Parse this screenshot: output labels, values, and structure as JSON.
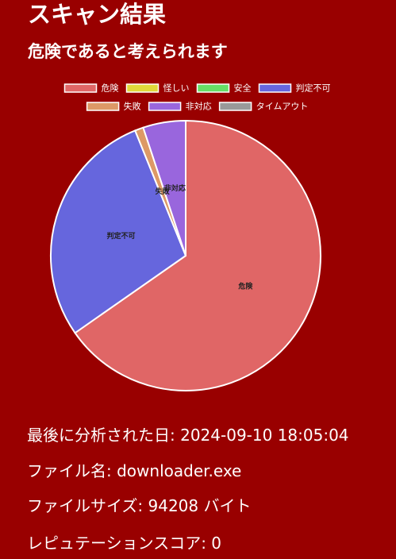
{
  "page": {
    "title": "スキャン結果",
    "subtitle": "危険であると考えられます"
  },
  "info": {
    "last_analyzed_label": "最後に分析された日: ",
    "last_analyzed_value": "2024-09-10 18:05:04",
    "file_name_label": "ファイル名: ",
    "file_name_value": "downloader.exe",
    "file_size_label": "ファイルサイズ: ",
    "file_size_value": "94208 バイト",
    "reputation_label": "レピュテーションスコア: ",
    "reputation_value": "0"
  },
  "colors": {
    "background": "#990000",
    "text": "#ffffff",
    "slice_border": "#ffffff"
  },
  "chart_data": {
    "type": "pie",
    "title": "",
    "legend_position": "top",
    "series": [
      {
        "name": "危険",
        "value": 64,
        "color": "#e06666"
      },
      {
        "name": "怪しい",
        "value": 0,
        "color": "#e0d83a"
      },
      {
        "name": "安全",
        "value": 0,
        "color": "#66dd66"
      },
      {
        "name": "判定不可",
        "value": 28,
        "color": "#6666dd"
      },
      {
        "name": "失敗",
        "value": 1,
        "color": "#dd9966"
      },
      {
        "name": "非対応",
        "value": 5,
        "color": "#9966dd"
      },
      {
        "name": "タイムアウト",
        "value": 0,
        "color": "#999999"
      }
    ]
  }
}
